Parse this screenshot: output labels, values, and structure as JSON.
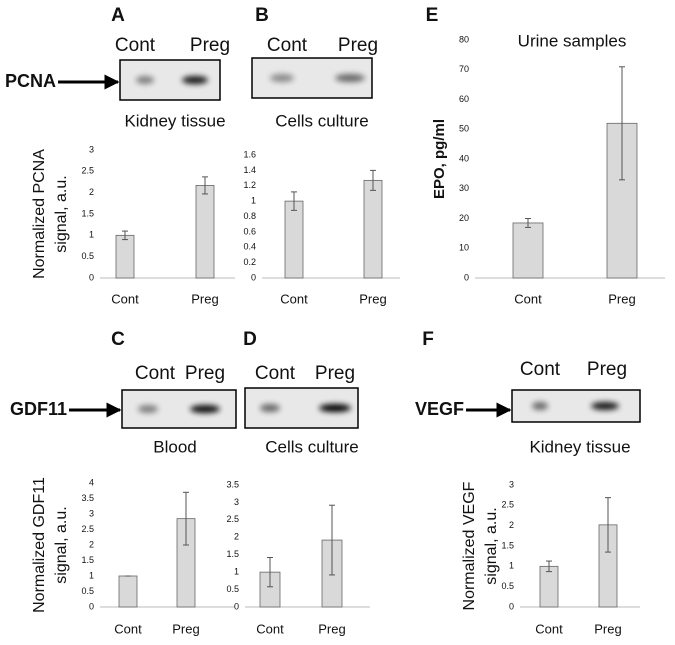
{
  "chart_data": [
    {
      "type": "bar",
      "panel": "A",
      "marker": "PCNA",
      "lanes": [
        "Cont",
        "Preg"
      ],
      "caption": "Kidney tissue",
      "ylabel": [
        "Normalized PCNA",
        "signal, a.u."
      ],
      "categories": [
        "Cont",
        "Preg"
      ],
      "values": [
        1.0,
        2.17
      ],
      "errors": [
        0.1,
        0.2
      ],
      "color": "#d9d9d9",
      "ylim": [
        0,
        3
      ],
      "yticks": [
        0,
        0.5,
        1,
        1.5,
        2,
        2.5,
        3
      ]
    },
    {
      "type": "bar",
      "panel": "B",
      "lanes": [
        "Cont",
        "Preg"
      ],
      "caption": "Cells culture",
      "categories": [
        "Cont",
        "Preg"
      ],
      "values": [
        1.0,
        1.27
      ],
      "errors": [
        0.12,
        0.13
      ],
      "color": "#d9d9d9",
      "ylim": [
        0,
        1.6
      ],
      "yticks": [
        0,
        0.2,
        0.4,
        0.6,
        0.8,
        1,
        1.2,
        1.4,
        1.6
      ]
    },
    {
      "type": "bar",
      "panel": "E",
      "title": "Urine samples",
      "ylabel": [
        "EPO, pg/ml"
      ],
      "categories": [
        "Cont",
        "Preg"
      ],
      "values": [
        18.5,
        52
      ],
      "errors": [
        1.5,
        19
      ],
      "color": "#d9d9d9",
      "ylim": [
        0,
        80
      ],
      "yticks": [
        0,
        10,
        20,
        30,
        40,
        50,
        60,
        70,
        80
      ]
    },
    {
      "type": "bar",
      "panel": "C",
      "marker": "GDF11",
      "lanes": [
        "Cont",
        "Preg"
      ],
      "caption": "Blood",
      "ylabel": [
        "Normalized GDF11",
        "signal, a.u."
      ],
      "categories": [
        "Cont",
        "Preg"
      ],
      "values": [
        1.0,
        2.85
      ],
      "errors": [
        0,
        0.85
      ],
      "color": "#d9d9d9",
      "ylim": [
        0,
        4
      ],
      "yticks": [
        0,
        0.5,
        1,
        1.5,
        2,
        2.5,
        3,
        3.5,
        4
      ]
    },
    {
      "type": "bar",
      "panel": "D",
      "lanes": [
        "Cont",
        "Preg"
      ],
      "caption": "Cells culture",
      "categories": [
        "Cont",
        "Preg"
      ],
      "values": [
        1.0,
        1.92
      ],
      "errors": [
        0.42,
        1.0
      ],
      "color": "#d9d9d9",
      "ylim": [
        0,
        3.5
      ],
      "yticks": [
        0,
        0.5,
        1,
        1.5,
        2,
        2.5,
        3,
        3.5
      ]
    },
    {
      "type": "bar",
      "panel": "F",
      "marker": "VEGF",
      "lanes": [
        "Cont",
        "Preg"
      ],
      "caption": "Kidney tissue",
      "ylabel": [
        "Normalized VEGF",
        "signal, a.u."
      ],
      "categories": [
        "Cont",
        "Preg"
      ],
      "values": [
        1.0,
        2.02
      ],
      "errors": [
        0.13,
        0.67
      ],
      "color": "#d9d9d9",
      "ylim": [
        0,
        3
      ],
      "yticks": [
        0,
        0.5,
        1,
        1.5,
        2,
        2.5,
        3
      ]
    }
  ]
}
